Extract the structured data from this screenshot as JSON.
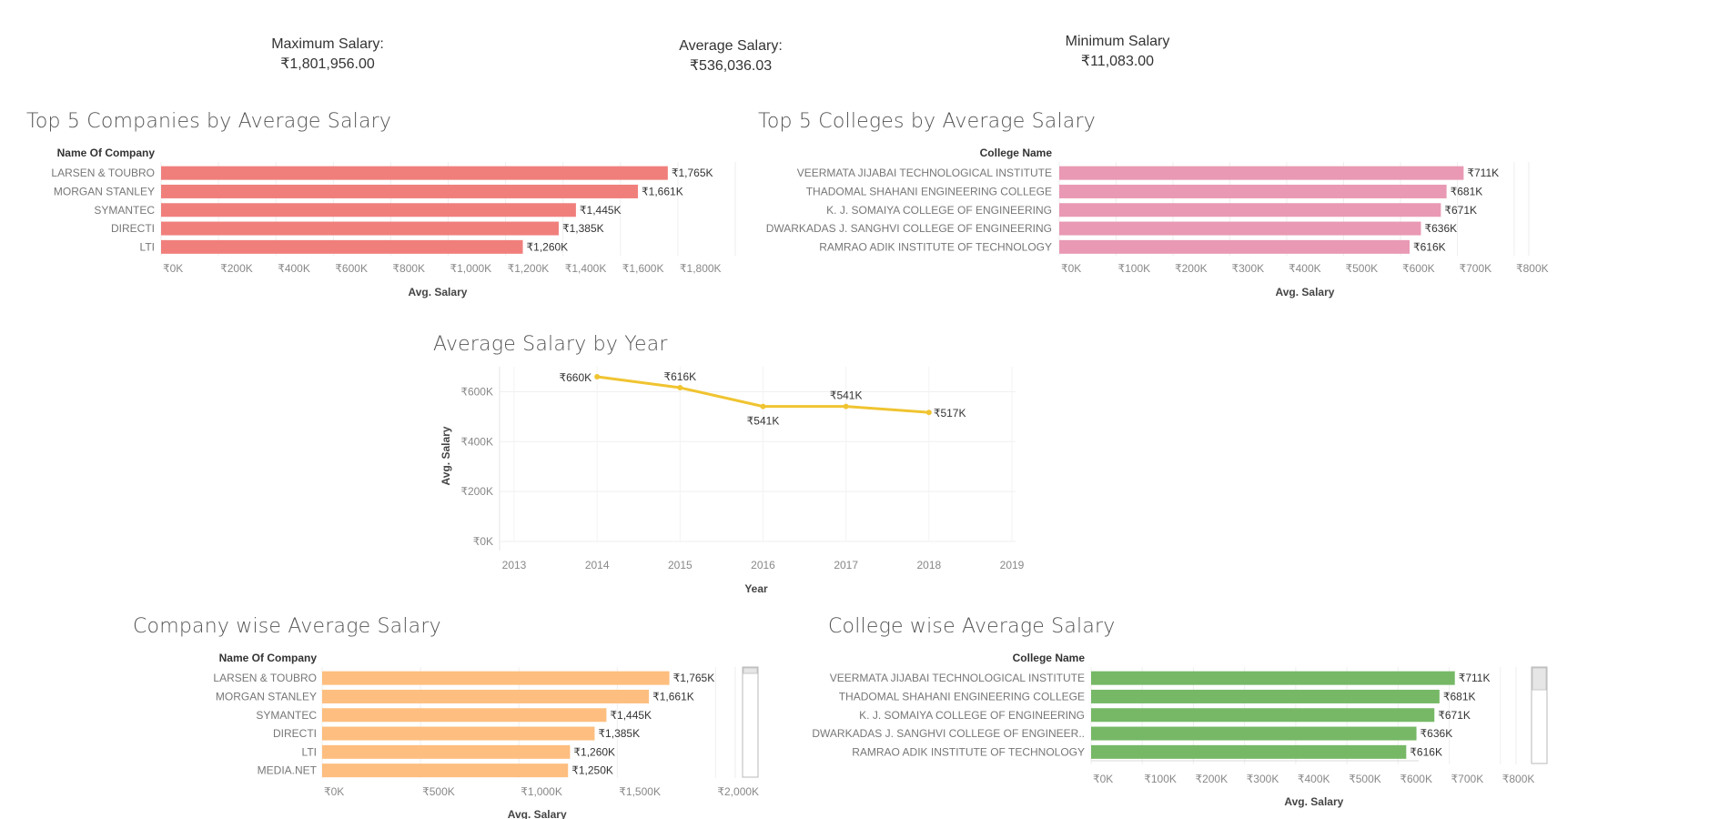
{
  "kpis": {
    "max_label": "Maximum Salary:",
    "max_value": "₹1,801,956.00",
    "avg_label": "Average Salary:",
    "avg_value": "₹536,036.03",
    "min_label": "Minimum Salary",
    "min_value": "₹11,083.00"
  },
  "chart_data": [
    {
      "id": "top_companies",
      "type": "bar",
      "orientation": "horizontal",
      "title": "Top 5 Companies by Average Salary",
      "header": "Name Of Company",
      "xlabel": "Avg. Salary",
      "categories": [
        "LARSEN & TOUBRO",
        "MORGAN STANLEY",
        "SYMANTEC",
        "DIRECTI",
        "LTI"
      ],
      "values": [
        1765,
        1661,
        1445,
        1385,
        1260
      ],
      "data_labels": [
        "₹1,765K",
        "₹1,661K",
        "₹1,445K",
        "₹1,385K",
        "₹1,260K"
      ],
      "xlim": [
        0,
        2000
      ],
      "xticks": [
        0,
        200,
        400,
        600,
        800,
        1000,
        1200,
        1400,
        1600,
        1800
      ],
      "xtick_labels": [
        "₹0K",
        "₹200K",
        "₹400K",
        "₹600K",
        "₹800K",
        "₹1,000K",
        "₹1,200K",
        "₹1,400K",
        "₹1,600K",
        "₹1,800K"
      ],
      "color": "#f07f7c"
    },
    {
      "id": "top_colleges",
      "type": "bar",
      "orientation": "horizontal",
      "title": "Top 5 Colleges by Average Salary",
      "header": "College Name",
      "xlabel": "Avg. Salary",
      "categories": [
        "VEERMATA JIJABAI TECHNOLOGICAL INSTITUTE",
        "THADOMAL SHAHANI ENGINEERING COLLEGE",
        "K. J. SOMAIYA COLLEGE OF ENGINEERING",
        "DWARKADAS J. SANGHVI COLLEGE OF ENGINEERING",
        "RAMRAO ADIK INSTITUTE OF TECHNOLOGY"
      ],
      "values": [
        711,
        681,
        671,
        636,
        616
      ],
      "data_labels": [
        "₹711K",
        "₹681K",
        "₹671K",
        "₹636K",
        "₹616K"
      ],
      "xlim": [
        0,
        800
      ],
      "xticks": [
        0,
        100,
        200,
        300,
        400,
        500,
        600,
        700,
        800
      ],
      "xtick_labels": [
        "₹0K",
        "₹100K",
        "₹200K",
        "₹300K",
        "₹400K",
        "₹500K",
        "₹600K",
        "₹700K",
        "₹800K"
      ],
      "color": "#e999b3"
    },
    {
      "id": "by_year",
      "type": "line",
      "title": "Average Salary by Year",
      "xlabel": "Year",
      "ylabel": "Avg. Salary",
      "x": [
        2014,
        2015,
        2016,
        2017,
        2018
      ],
      "values": [
        660,
        616,
        541,
        541,
        517
      ],
      "data_labels": [
        "₹660K",
        "₹616K",
        "₹541K",
        "₹541K",
        "₹517K"
      ],
      "xlim": [
        2013,
        2019
      ],
      "xticks": [
        2013,
        2014,
        2015,
        2016,
        2017,
        2018,
        2019
      ],
      "xtick_labels": [
        "2013",
        "2014",
        "2015",
        "2016",
        "2017",
        "2018",
        "2019"
      ],
      "ylim": [
        0,
        700
      ],
      "yticks": [
        0,
        200,
        400,
        600
      ],
      "ytick_labels": [
        "₹0K",
        "₹200K",
        "₹400K",
        "₹600K"
      ],
      "color": "#f0c431"
    },
    {
      "id": "company_wise",
      "type": "bar",
      "orientation": "horizontal",
      "title": "Company wise Average Salary",
      "header": "Name Of Company",
      "xlabel": "Avg. Salary",
      "categories": [
        "LARSEN & TOUBRO",
        "MORGAN STANLEY",
        "SYMANTEC",
        "DIRECTI",
        "LTI",
        "MEDIA.NET"
      ],
      "values": [
        1765,
        1661,
        1445,
        1385,
        1260,
        1250
      ],
      "data_labels": [
        "₹1,765K",
        "₹1,661K",
        "₹1,445K",
        "₹1,385K",
        "₹1,260K",
        "₹1,250K"
      ],
      "xlim": [
        0,
        2100
      ],
      "xticks": [
        0,
        500,
        1000,
        1500,
        2000
      ],
      "xtick_labels": [
        "₹0K",
        "₹500K",
        "₹1,000K",
        "₹1,500K",
        "₹2,000K"
      ],
      "color": "#fdbe7f"
    },
    {
      "id": "college_wise",
      "type": "bar",
      "orientation": "horizontal",
      "title": "College wise Average Salary",
      "header": "College Name",
      "xlabel": "Avg. Salary",
      "categories": [
        "VEERMATA JIJABAI TECHNOLOGICAL INSTITUTE",
        "THADOMAL SHAHANI ENGINEERING COLLEGE",
        "K. J. SOMAIYA COLLEGE OF ENGINEERING",
        "DWARKADAS J. SANGHVI COLLEGE OF ENGINEER..",
        "RAMRAO ADIK INSTITUTE OF TECHNOLOGY"
      ],
      "values": [
        711,
        681,
        671,
        636,
        616
      ],
      "data_labels": [
        "₹711K",
        "₹681K",
        "₹671K",
        "₹636K",
        "₹616K"
      ],
      "xlim": [
        0,
        820
      ],
      "xticks": [
        0,
        100,
        200,
        300,
        400,
        500,
        600,
        700,
        800
      ],
      "xtick_labels": [
        "₹0K",
        "₹100K",
        "₹200K",
        "₹300K",
        "₹400K",
        "₹500K",
        "₹600K",
        "₹700K",
        "₹800K"
      ],
      "color": "#76b866"
    }
  ]
}
